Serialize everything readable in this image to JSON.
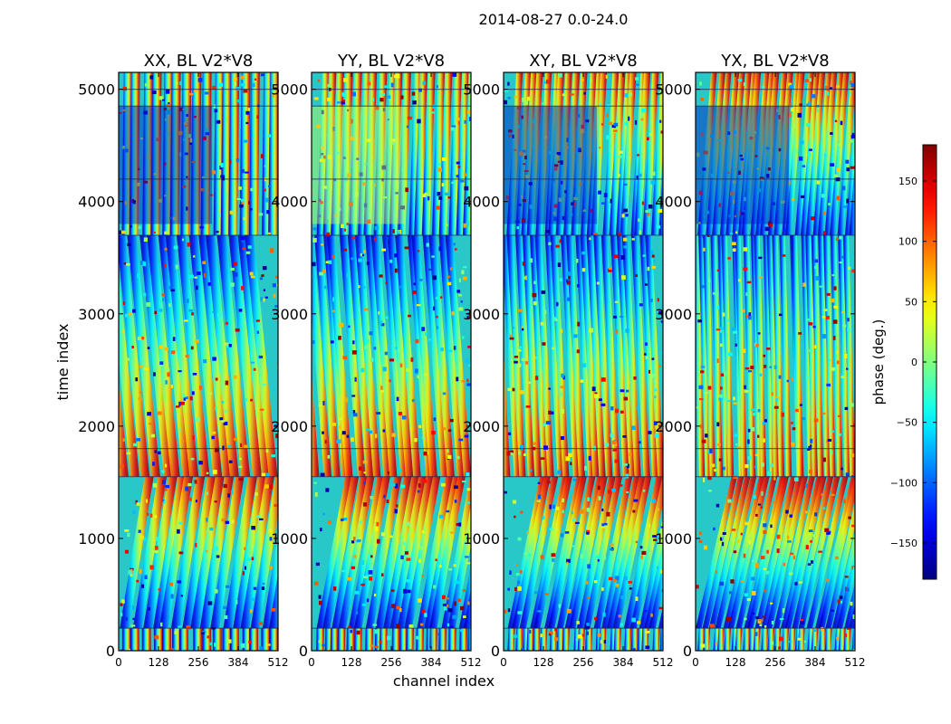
{
  "figure": {
    "suptitle": "2014-08-27 0.0-24.0",
    "xlabel": "channel index",
    "ylabel": "time index",
    "colorbar_label": "phase (deg.)"
  },
  "chart_data": [
    {
      "type": "heatmap",
      "title": "XX, BL V2*V8",
      "xlabel": "channel index",
      "ylabel": "time index",
      "xlim": [
        0,
        512
      ],
      "ylim": [
        0,
        5150
      ],
      "xticks": [
        0,
        128,
        256,
        384,
        512
      ],
      "yticks": [
        0,
        1000,
        2000,
        3000,
        4000,
        5000
      ],
      "value_range": [
        -180,
        180
      ],
      "colormap": "jet",
      "value_unit": "phase (deg.)"
    },
    {
      "type": "heatmap",
      "title": "YY, BL V2*V8",
      "xlabel": "channel index",
      "ylabel": "",
      "xlim": [
        0,
        512
      ],
      "ylim": [
        0,
        5150
      ],
      "xticks": [
        0,
        128,
        256,
        384,
        512
      ],
      "yticks": [
        0,
        1000,
        2000,
        3000,
        4000,
        5000
      ],
      "value_range": [
        -180,
        180
      ],
      "colormap": "jet",
      "value_unit": "phase (deg.)"
    },
    {
      "type": "heatmap",
      "title": "XY, BL V2*V8",
      "xlabel": "channel index",
      "ylabel": "",
      "xlim": [
        0,
        512
      ],
      "ylim": [
        0,
        5150
      ],
      "xticks": [
        0,
        128,
        256,
        384,
        512
      ],
      "yticks": [
        0,
        1000,
        2000,
        3000,
        4000,
        5000
      ],
      "value_range": [
        -180,
        180
      ],
      "colormap": "jet",
      "value_unit": "phase (deg.)"
    },
    {
      "type": "heatmap",
      "title": "YX, BL V2*V8",
      "xlabel": "channel index",
      "ylabel": "",
      "xlim": [
        0,
        512
      ],
      "ylim": [
        0,
        5150
      ],
      "xticks": [
        0,
        128,
        256,
        384,
        512
      ],
      "yticks": [
        0,
        1000,
        2000,
        3000,
        4000,
        5000
      ],
      "value_range": [
        -180,
        180
      ],
      "colormap": "jet",
      "value_unit": "phase (deg.)"
    }
  ],
  "colorbar": {
    "min": -180,
    "max": 180,
    "ticks": [
      -150,
      -100,
      -50,
      0,
      50,
      100,
      150
    ],
    "tick_labels": [
      "−150",
      "−100",
      "−50",
      "0",
      "50",
      "100",
      "150"
    ],
    "colormap": "jet"
  }
}
